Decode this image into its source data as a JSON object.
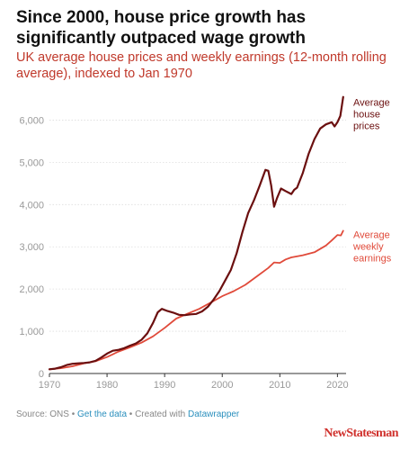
{
  "title": "Since 2000, house price growth has significantly outpaced wage growth",
  "subtitle": "UK average house prices and weekly earnings (12-month rolling average), indexed to Jan 1970",
  "footer": {
    "source": "Source: ONS",
    "sep1": " • ",
    "get_data": "Get the data",
    "sep2": " • Created with ",
    "tool": "Datawrapper"
  },
  "brand": "NewStatesman",
  "colors": {
    "house": "#6b0f0f",
    "earnings": "#e04a3a",
    "grid": "#dddddd",
    "axis_text": "#999999"
  },
  "chart_data": {
    "type": "line",
    "xlim": [
      1970,
      2021.5
    ],
    "ylim": [
      0,
      6500
    ],
    "x_ticks": [
      1970,
      1980,
      1990,
      2000,
      2010,
      2020
    ],
    "y_ticks": [
      0,
      1000,
      2000,
      3000,
      4000,
      5000,
      6000
    ],
    "y_tick_labels": [
      "0",
      "1,000",
      "2,000",
      "3,000",
      "4,000",
      "5,000",
      "6,000"
    ],
    "grid": true,
    "legend": "direct labels at line ends",
    "series": [
      {
        "name": "Average house prices",
        "label_lines": [
          "Average",
          "house",
          "prices"
        ],
        "color": "#6b0f0f",
        "points": [
          [
            1970,
            100
          ],
          [
            1971,
            115
          ],
          [
            1972,
            150
          ],
          [
            1973,
            200
          ],
          [
            1974,
            230
          ],
          [
            1975,
            240
          ],
          [
            1976,
            250
          ],
          [
            1977,
            265
          ],
          [
            1978,
            300
          ],
          [
            1979,
            380
          ],
          [
            1980,
            470
          ],
          [
            1981,
            540
          ],
          [
            1982,
            560
          ],
          [
            1983,
            600
          ],
          [
            1984,
            660
          ],
          [
            1985,
            710
          ],
          [
            1986,
            800
          ],
          [
            1987,
            950
          ],
          [
            1988,
            1200
          ],
          [
            1988.8,
            1450
          ],
          [
            1989.5,
            1530
          ],
          [
            1990.5,
            1480
          ],
          [
            1991.5,
            1440
          ],
          [
            1992.5,
            1390
          ],
          [
            1993.5,
            1380
          ],
          [
            1994.5,
            1400
          ],
          [
            1995.5,
            1410
          ],
          [
            1996.5,
            1470
          ],
          [
            1997.5,
            1580
          ],
          [
            1998.5,
            1750
          ],
          [
            1999.5,
            1950
          ],
          [
            2000.5,
            2200
          ],
          [
            2001.5,
            2450
          ],
          [
            2002.5,
            2850
          ],
          [
            2003.5,
            3350
          ],
          [
            2004.5,
            3800
          ],
          [
            2005.5,
            4100
          ],
          [
            2006.5,
            4450
          ],
          [
            2007.5,
            4820
          ],
          [
            2008,
            4800
          ],
          [
            2008.5,
            4450
          ],
          [
            2009,
            3950
          ],
          [
            2009.5,
            4150
          ],
          [
            2010.2,
            4380
          ],
          [
            2011,
            4320
          ],
          [
            2012,
            4250
          ],
          [
            2012.5,
            4350
          ],
          [
            2013,
            4400
          ],
          [
            2014,
            4750
          ],
          [
            2015,
            5200
          ],
          [
            2016,
            5550
          ],
          [
            2017,
            5800
          ],
          [
            2018,
            5900
          ],
          [
            2019,
            5950
          ],
          [
            2019.5,
            5850
          ],
          [
            2020,
            5950
          ],
          [
            2020.5,
            6100
          ],
          [
            2021,
            6550
          ]
        ]
      },
      {
        "name": "Average weekly earnings",
        "label_lines": [
          "Average",
          "weekly",
          "earnings"
        ],
        "color": "#e04a3a",
        "points": [
          [
            1970,
            100
          ],
          [
            1972,
            125
          ],
          [
            1974,
            170
          ],
          [
            1976,
            240
          ],
          [
            1978,
            290
          ],
          [
            1980,
            390
          ],
          [
            1982,
            520
          ],
          [
            1984,
            620
          ],
          [
            1986,
            730
          ],
          [
            1988,
            880
          ],
          [
            1990,
            1080
          ],
          [
            1992,
            1300
          ],
          [
            1994,
            1420
          ],
          [
            1996,
            1530
          ],
          [
            1998,
            1680
          ],
          [
            2000,
            1830
          ],
          [
            2002,
            1950
          ],
          [
            2004,
            2100
          ],
          [
            2006,
            2300
          ],
          [
            2008,
            2500
          ],
          [
            2009,
            2630
          ],
          [
            2010,
            2620
          ],
          [
            2011,
            2700
          ],
          [
            2012,
            2750
          ],
          [
            2014,
            2800
          ],
          [
            2016,
            2870
          ],
          [
            2018,
            3030
          ],
          [
            2019,
            3150
          ],
          [
            2020,
            3280
          ],
          [
            2020.6,
            3270
          ],
          [
            2021,
            3380
          ]
        ]
      }
    ]
  }
}
